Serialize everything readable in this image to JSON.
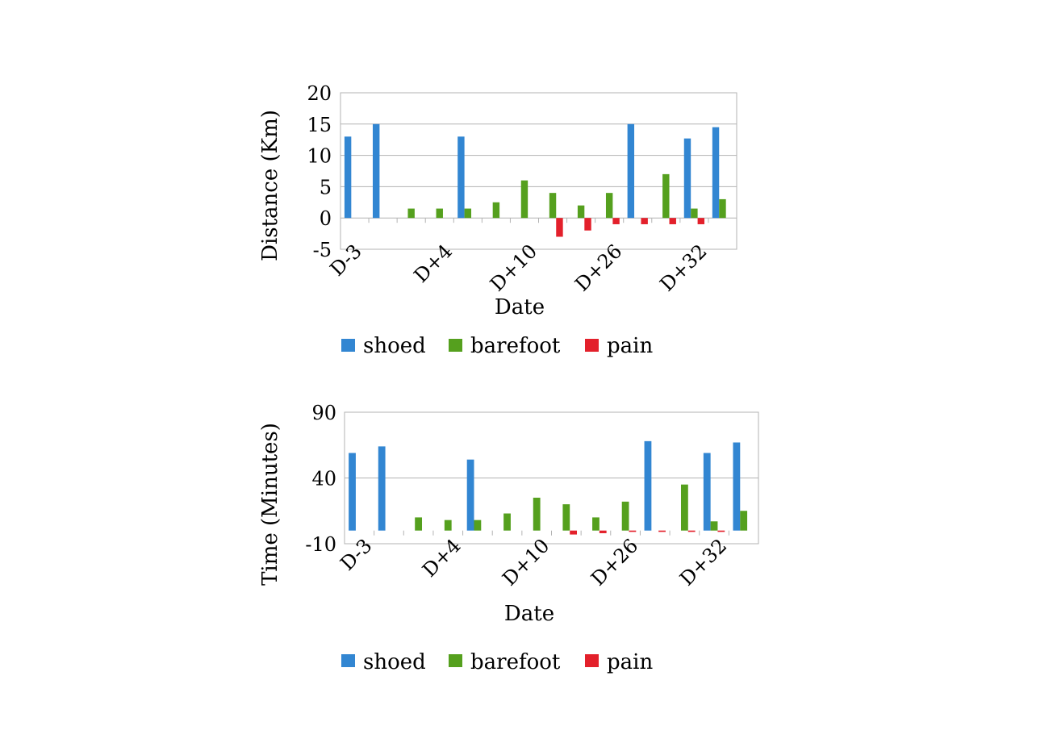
{
  "colors": {
    "shoed": "#3286d2",
    "barefoot": "#55a01e",
    "pain": "#e3202b",
    "grid": "#b3b3b3"
  },
  "chart_data": [
    {
      "type": "bar",
      "xlabel": "Date",
      "ylabel": "Distance (Km)",
      "ylim": [
        -5,
        20
      ],
      "yticks": [
        "20",
        "15",
        "10",
        "5",
        "0",
        "-5"
      ],
      "category_labels": [
        "D-3",
        "D+4",
        "D+10",
        "D+26",
        "D+32"
      ],
      "categories_count": 14,
      "legend": {
        "shoed": "shoed",
        "barefoot": "barefoot",
        "pain": "pain"
      },
      "series": [
        {
          "name": "shoed",
          "values": [
            13,
            15,
            0,
            0,
            13,
            0,
            0,
            0,
            0,
            0,
            15,
            0,
            12.7,
            14.5
          ]
        },
        {
          "name": "barefoot",
          "values": [
            0,
            0,
            1.5,
            1.5,
            1.5,
            2.5,
            6,
            4,
            2,
            4,
            0,
            7,
            1.5,
            3
          ]
        },
        {
          "name": "pain",
          "values": [
            0,
            0,
            0,
            0,
            0,
            0,
            0,
            -3,
            -2,
            -1,
            -1,
            -1,
            -1,
            0
          ]
        }
      ]
    },
    {
      "type": "bar",
      "xlabel": "Date",
      "ylabel": "Time (Minutes)",
      "ylim": [
        -10,
        90
      ],
      "yticks": [
        "90",
        "40",
        "-10"
      ],
      "category_labels": [
        "D-3",
        "D+4",
        "D+10",
        "D+26",
        "D+32"
      ],
      "categories_count": 14,
      "legend": {
        "shoed": "shoed",
        "barefoot": "barefoot",
        "pain": "pain"
      },
      "series": [
        {
          "name": "shoed",
          "values": [
            59,
            64,
            0,
            0,
            54,
            0,
            0,
            0,
            0,
            0,
            68,
            0,
            59,
            67
          ]
        },
        {
          "name": "barefoot",
          "values": [
            0,
            0,
            10,
            8,
            8,
            13,
            25,
            20,
            10,
            22,
            0,
            35,
            7,
            15
          ]
        },
        {
          "name": "pain",
          "values": [
            0,
            0,
            0,
            0,
            0,
            0,
            0,
            -3,
            -2,
            -1,
            -1,
            -1,
            -1,
            0
          ]
        }
      ]
    }
  ]
}
